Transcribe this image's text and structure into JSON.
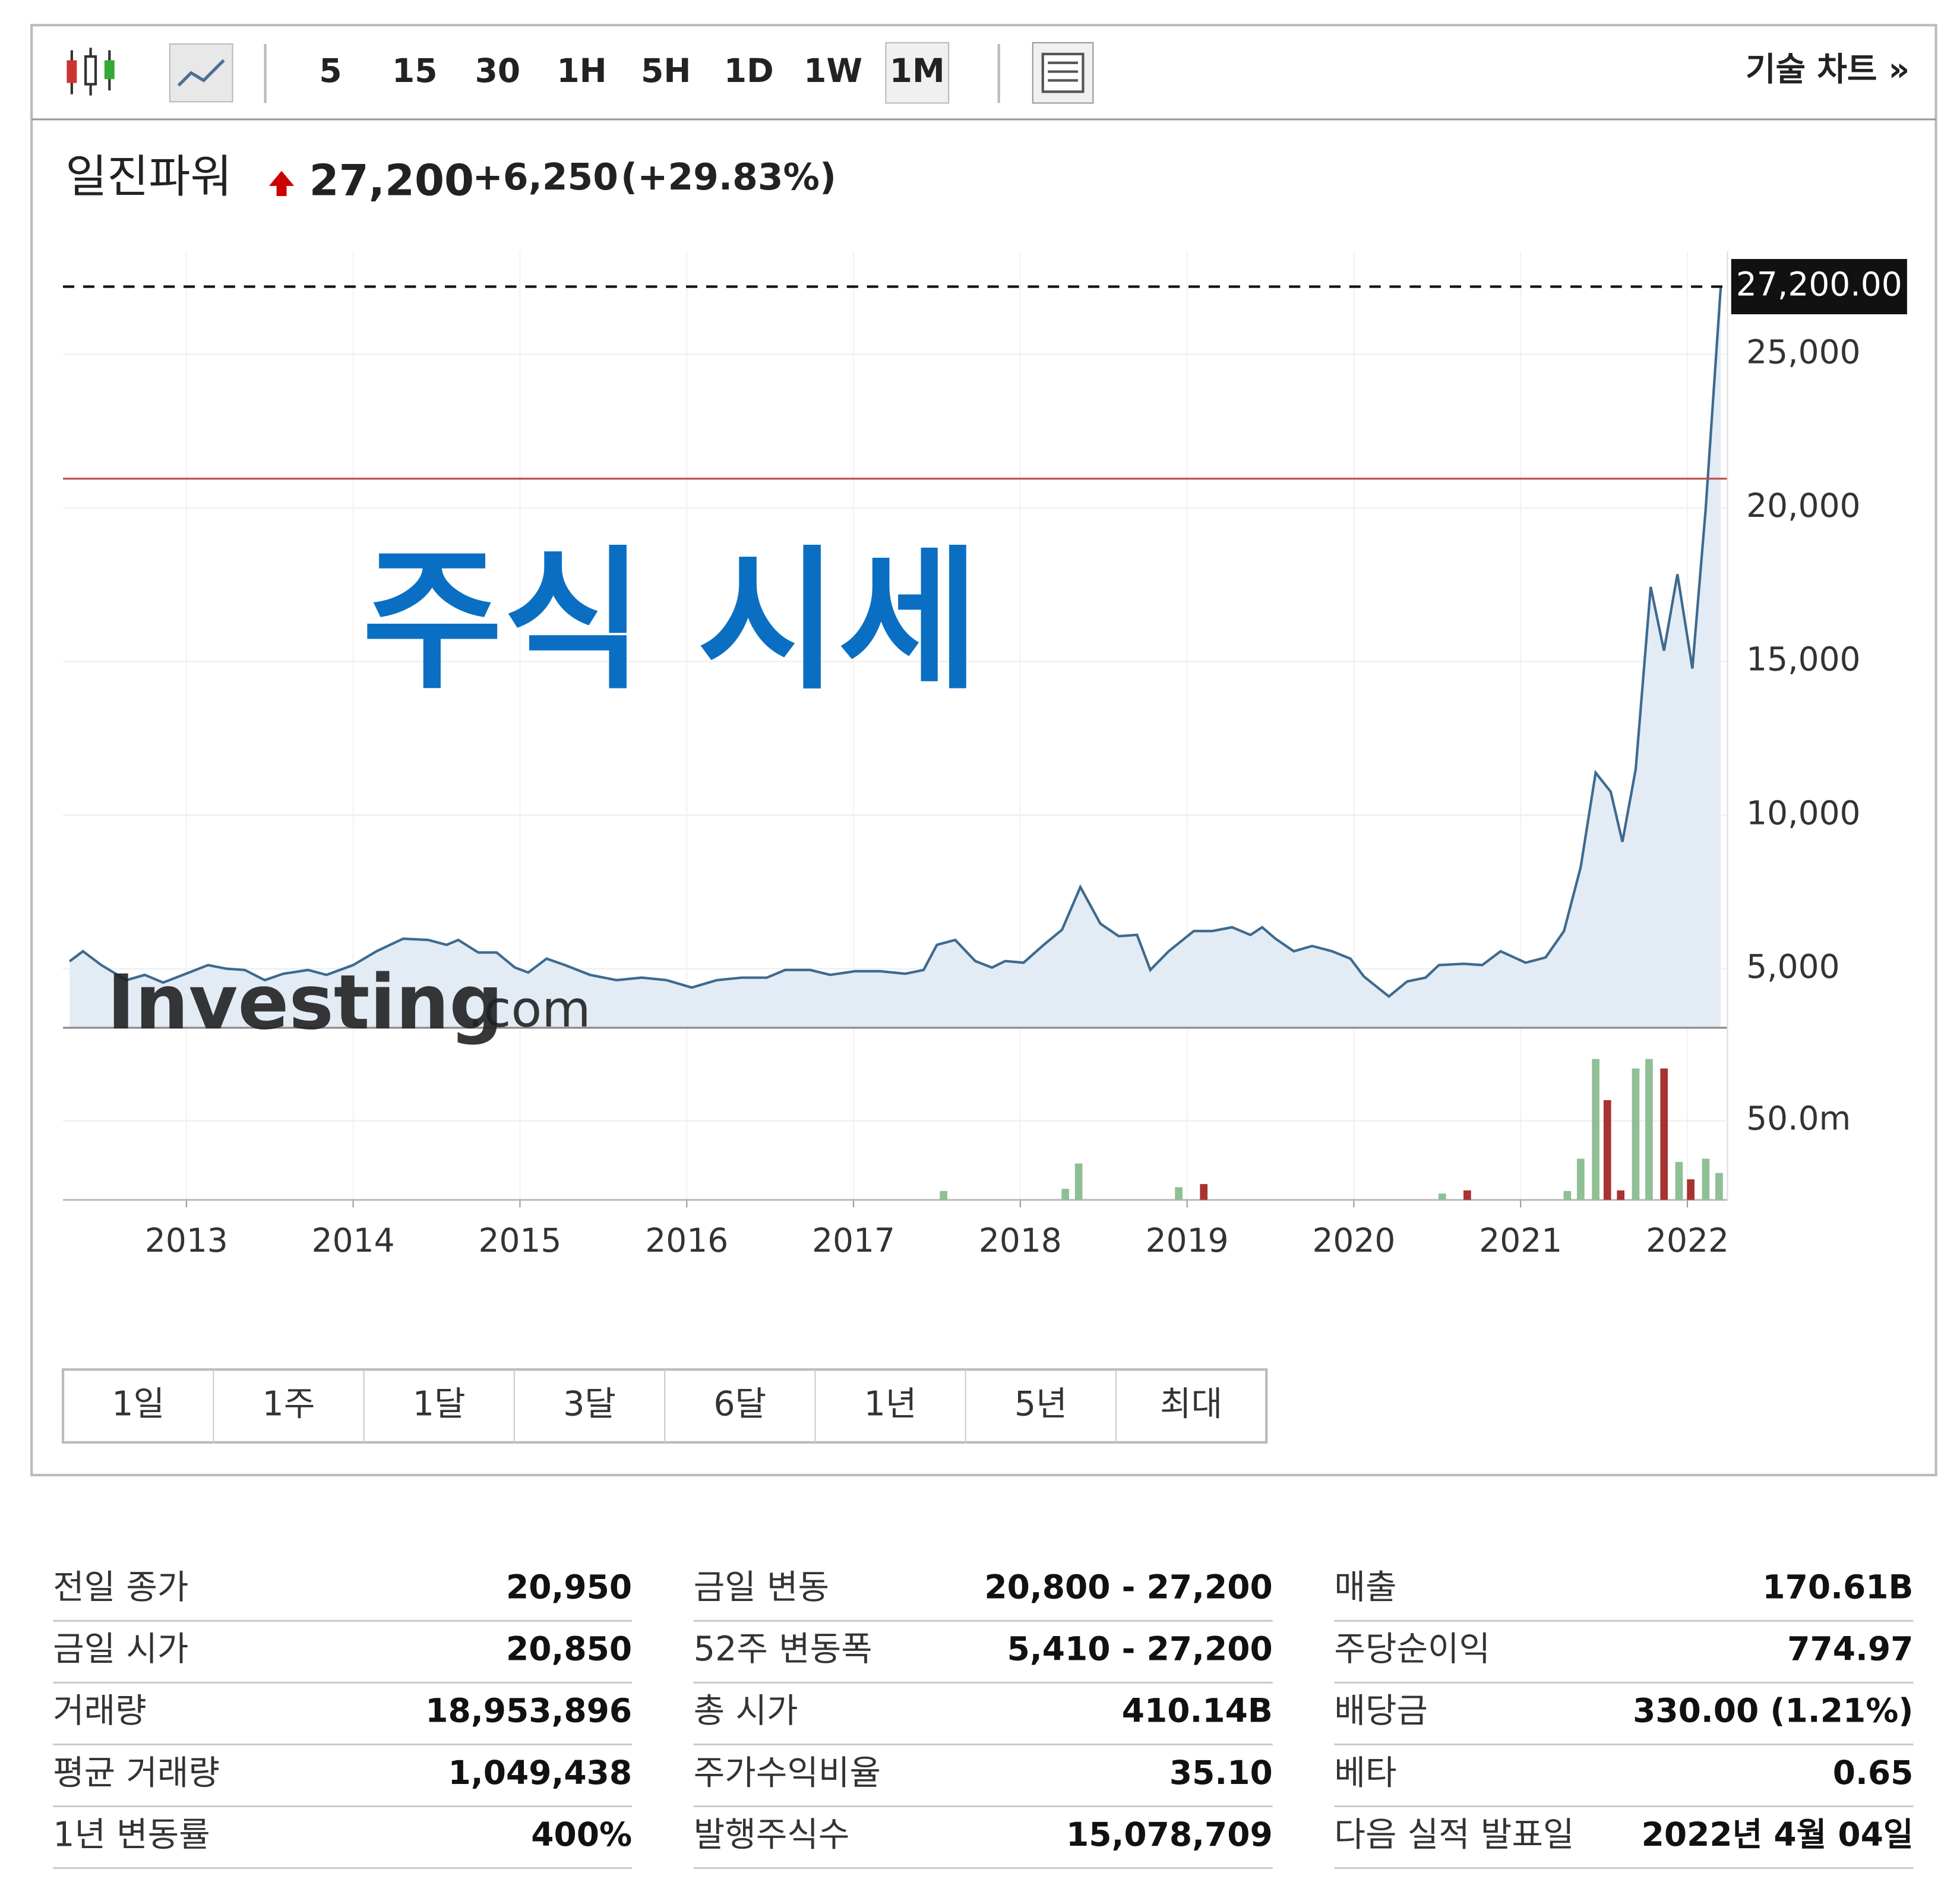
{
  "toolbar": {
    "intervals": [
      "5",
      "15",
      "30",
      "1H",
      "5H",
      "1D",
      "1W",
      "1M"
    ],
    "active": "1M",
    "link": "기술 차트 »"
  },
  "quote": {
    "name": "일진파워",
    "price": "27,200",
    "change": "+6,250",
    "change_pct": "(+29.83%)"
  },
  "overlay_title": "주식 시세",
  "watermark": {
    "brand": "Investing",
    "suffix": ".com"
  },
  "chart_data": {
    "type": "line",
    "x": [
      2012.3,
      2012.38,
      2012.49,
      2012.64,
      2012.75,
      2012.86,
      2012.98,
      2013.13,
      2013.24,
      2013.35,
      2013.47,
      2013.58,
      2013.73,
      2013.84,
      2014.0,
      2014.14,
      2014.3,
      2014.45,
      2014.56,
      2014.63,
      2014.75,
      2014.86,
      2014.97,
      2015.05,
      2015.16,
      2015.27,
      2015.42,
      2015.58,
      2015.73,
      2015.88,
      2016.03,
      2016.18,
      2016.33,
      2016.48,
      2016.59,
      2016.74,
      2016.86,
      2017.01,
      2017.16,
      2017.31,
      2017.42,
      2017.5,
      2017.61,
      2017.73,
      2017.83,
      2017.91,
      2018.02,
      2018.14,
      2018.25,
      2018.36,
      2018.48,
      2018.59,
      2018.7,
      2018.78,
      2018.89,
      2019.04,
      2019.15,
      2019.27,
      2019.38,
      2019.45,
      2019.53,
      2019.64,
      2019.75,
      2019.87,
      2019.98,
      2020.06,
      2020.21,
      2020.32,
      2020.43,
      2020.51,
      2020.66,
      2020.77,
      2020.88,
      2021.03,
      2021.15,
      2021.26,
      2021.36,
      2021.45,
      2021.54,
      2021.61,
      2021.69,
      2021.78,
      2021.86,
      2021.94,
      2022.03,
      2022.11,
      2022.2
    ],
    "values": [
      5245,
      5570,
      5120,
      4630,
      4800,
      4550,
      4800,
      5120,
      5000,
      4960,
      4630,
      4840,
      4960,
      4800,
      5120,
      5570,
      5980,
      5940,
      5780,
      5940,
      5530,
      5530,
      5040,
      4880,
      5330,
      5120,
      4800,
      4630,
      4710,
      4630,
      4390,
      4630,
      4710,
      4710,
      4960,
      4960,
      4800,
      4920,
      4920,
      4840,
      4960,
      5780,
      5940,
      5250,
      5040,
      5250,
      5200,
      5780,
      6270,
      7660,
      6470,
      6060,
      6100,
      4960,
      5570,
      6230,
      6230,
      6350,
      6100,
      6350,
      5980,
      5570,
      5740,
      5570,
      5330,
      4750,
      4100,
      4590,
      4710,
      5120,
      5160,
      5120,
      5570,
      5200,
      5370,
      6230,
      8310,
      11380,
      10760,
      9130,
      11500,
      17430,
      15350,
      17840,
      14770,
      19970,
      27200
    ],
    "color": "#3d6a8f",
    "area_color": "#e3ebf5",
    "xlim": [
      2012.26,
      2022.24
    ],
    "xticks": [
      2013,
      2014,
      2015,
      2016,
      2017,
      2018,
      2019,
      2020,
      2021,
      2022
    ],
    "ylim": [
      3080,
      28350
    ],
    "yticks": [
      {
        "value": 5000,
        "label": "5,000"
      },
      {
        "value": 10000,
        "label": "10,000"
      },
      {
        "value": 15000,
        "label": "15,000"
      },
      {
        "value": 20000,
        "label": "20,000"
      },
      {
        "value": 25000,
        "label": "25,000"
      }
    ],
    "grid": true,
    "last_price": {
      "value": 27200,
      "label": "27,200.00"
    },
    "prev_close_line": {
      "value": 20950,
      "color": "#c0504d"
    },
    "volume": {
      "y2lim": [
        0,
        108700000
      ],
      "y2ticks": [
        {
          "value": 50000000,
          "label": "50.0m"
        }
      ],
      "series": [
        {
          "color": "#8fbf95",
          "x": [
            2017.54,
            2018.27,
            2018.35,
            2018.95,
            2020.53,
            2021.28,
            2021.36,
            2021.45,
            2021.69,
            2021.77,
            2021.95,
            2022.11,
            2022.19
          ],
          "values": [
            5600000,
            7000000,
            23000000,
            8000000,
            4000000,
            5600000,
            26000000,
            89000000,
            83000000,
            89000000,
            24000000,
            26000000,
            17000000
          ]
        },
        {
          "color": "#a83232",
          "x": [
            2019.1,
            2020.68,
            2021.52,
            2021.6,
            2021.86,
            2022.02
          ],
          "values": [
            10000000,
            6000000,
            63000000,
            6000000,
            83000000,
            13000000
          ]
        }
      ]
    }
  },
  "range_buttons": [
    "1일",
    "1주",
    "1달",
    "3달",
    "6달",
    "1년",
    "5년",
    "최대"
  ],
  "stats": [
    [
      [
        "전일 종가",
        "20,950"
      ],
      [
        "금일 시가",
        "20,850"
      ],
      [
        "거래량",
        "18,953,896"
      ],
      [
        "평균 거래량",
        "1,049,438"
      ],
      [
        "1년 변동률",
        "400%"
      ]
    ],
    [
      [
        "금일 변동",
        "20,800 - 27,200"
      ],
      [
        "52주 변동폭",
        "5,410 - 27,200"
      ],
      [
        "총 시가",
        "410.14B"
      ],
      [
        "주가수익비율",
        "35.10"
      ],
      [
        "발행주식수",
        "15,078,709"
      ]
    ],
    [
      [
        "매출",
        "170.61B"
      ],
      [
        "주당순이익",
        "774.97"
      ],
      [
        "배당금",
        "330.00 (1.21%)"
      ],
      [
        "베타",
        "0.65"
      ],
      [
        "다음 실적 발표일",
        "2022년 4월 04일"
      ]
    ]
  ]
}
